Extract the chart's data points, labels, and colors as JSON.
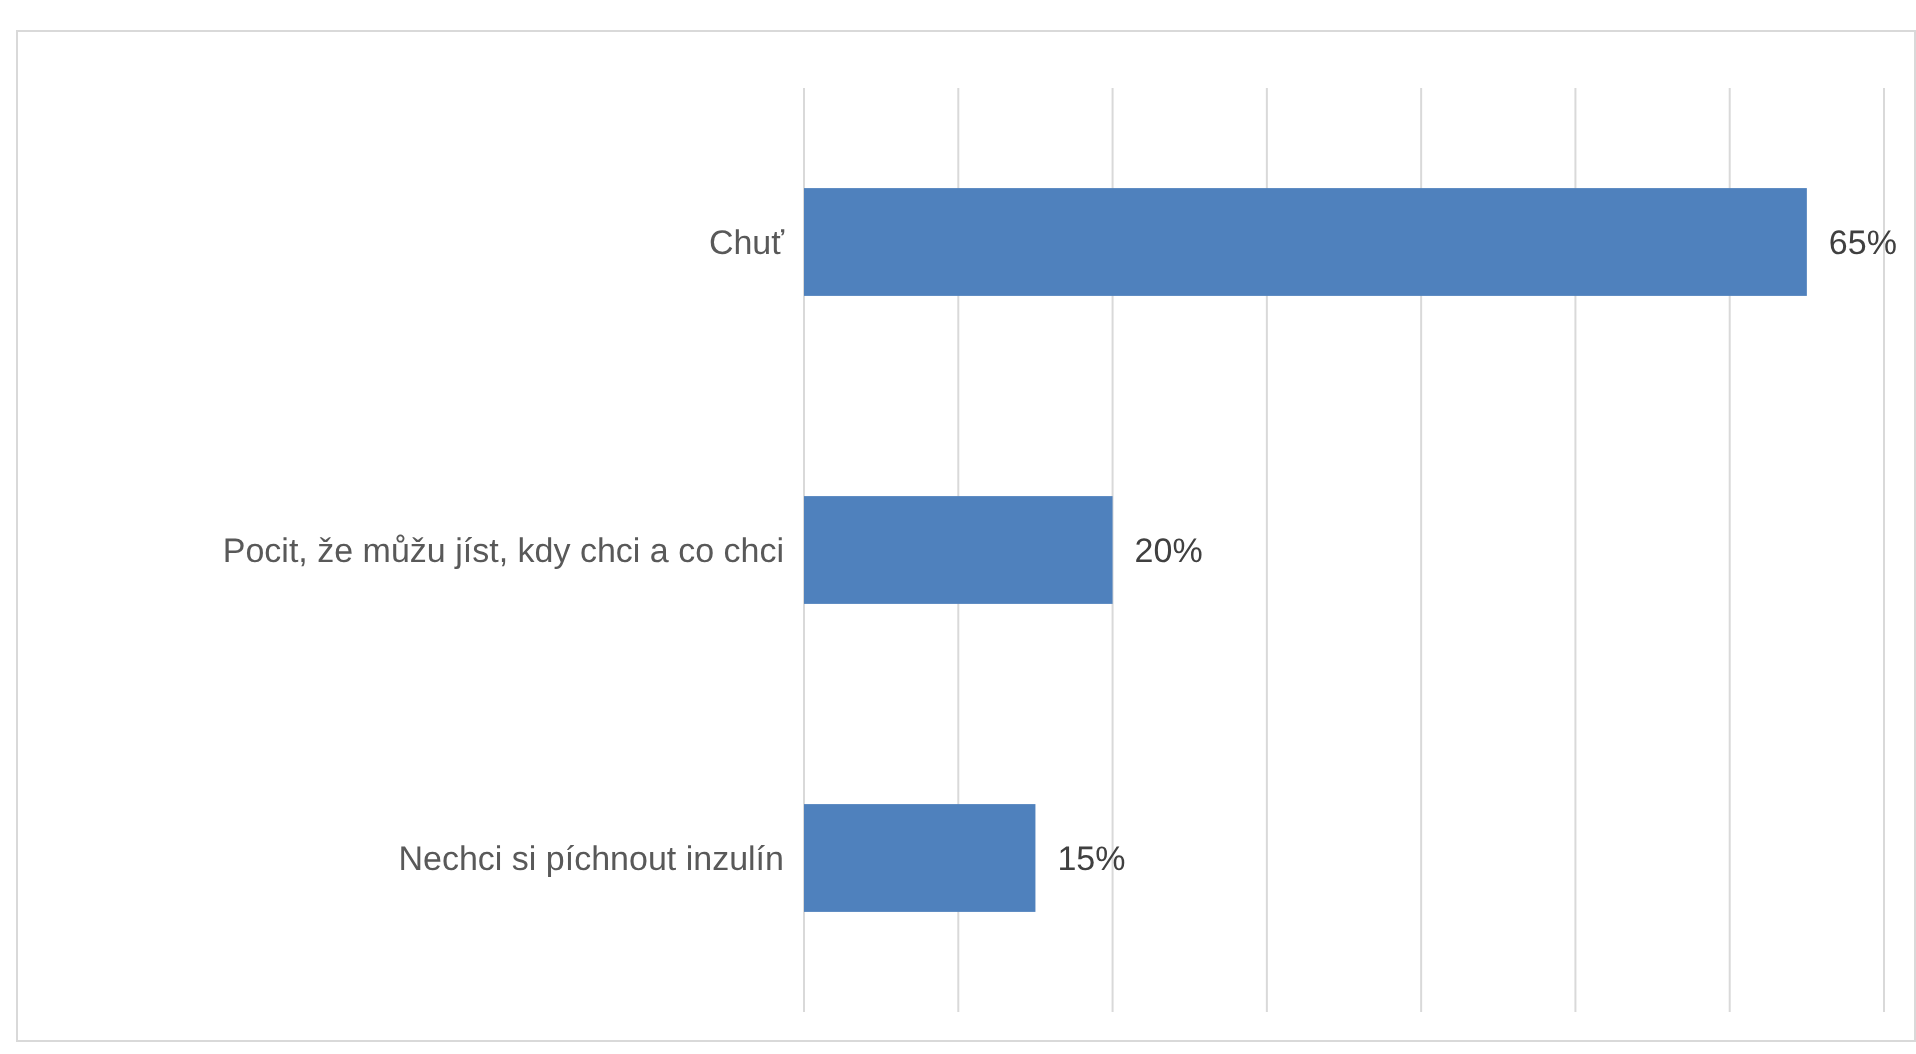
{
  "chart_data": {
    "type": "bar",
    "orientation": "horizontal",
    "categories": [
      "Chuť",
      "Pocit, že můžu jíst, kdy chci a co chci",
      "Nechci si píchnout inzulín"
    ],
    "values": [
      65,
      20,
      15
    ],
    "value_labels": [
      "65%",
      "20%",
      "15%"
    ],
    "color": "#4f81bd",
    "xlim": [
      0,
      70
    ],
    "xticks": [
      {
        "value": 0,
        "label": null
      },
      {
        "value": 10,
        "label": null
      },
      {
        "value": 20,
        "label": null
      },
      {
        "value": 30,
        "label": null
      },
      {
        "value": 40,
        "label": null
      },
      {
        "value": 50,
        "label": null
      },
      {
        "value": 60,
        "label": null
      },
      {
        "value": 70,
        "label": null
      }
    ],
    "tick_labels": "y",
    "grid": "x"
  }
}
